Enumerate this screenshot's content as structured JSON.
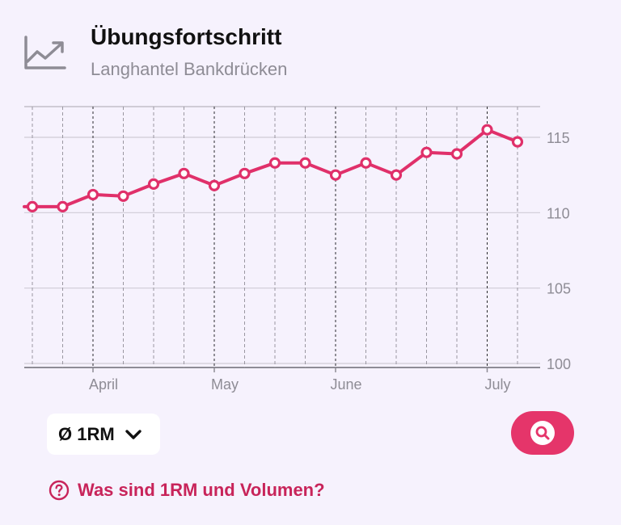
{
  "header": {
    "title": "Übungsfortschritt",
    "subtitle": "Langhantel Bankdrücken"
  },
  "chart_data": {
    "type": "line",
    "title": "",
    "xlabel": "",
    "ylabel": "",
    "ylim": [
      100,
      117
    ],
    "y_ticks": [
      100,
      105,
      110,
      115
    ],
    "x_tick_labels": [
      "April",
      "May",
      "June",
      "July"
    ],
    "grid": true,
    "line_color": "#e0306a",
    "series": [
      {
        "values": [
          110.4,
          110.4,
          111.2,
          111.1,
          111.9,
          112.6,
          111.8,
          112.6,
          113.3,
          113.3,
          112.5,
          113.3,
          112.5,
          114.0,
          113.9,
          115.5,
          114.7
        ]
      }
    ]
  },
  "controls": {
    "metric_label": "Ø 1RM",
    "help_text": "Was sind 1RM und Volumen?"
  },
  "colors": {
    "background": "#f6f2fd",
    "accent": "#e5356a",
    "link": "#c8245a"
  },
  "icons": {
    "header": "chart-line-icon",
    "dropdown": "chevron-down-icon",
    "zoom": "search-icon",
    "help": "question-circle-icon"
  }
}
